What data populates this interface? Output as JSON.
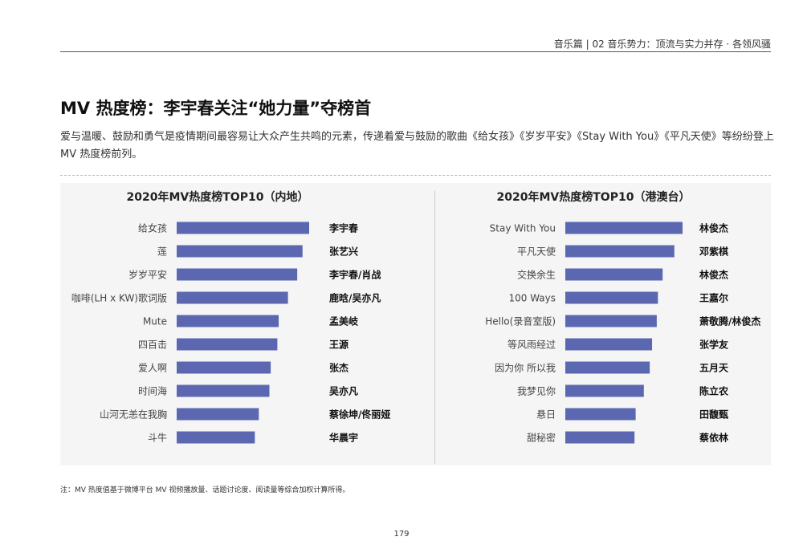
{
  "header": {
    "section": "音乐篇 | 02 音乐势力：顶流与实力并存 · 各领风骚"
  },
  "title": "MV 热度榜：李宇春关注“她力量”夺榜首",
  "description": "爱与温暖、鼓励和勇气是疫情期间最容易让大众产生共鸣的元素，传递着爱与鼓励的歌曲《给女孩》《岁岁平安》《Stay With You》《平凡天使》等纷纷登上 MV 热度榜前列。",
  "note": "注：MV 热度值基于微博平台 MV 视频播放量、话题讨论度、阅读量等综合加权计算所得。",
  "page_number": "179",
  "colors": {
    "bar": "#5b68b1",
    "panel": "#f5f5f5"
  },
  "chart_data": [
    {
      "type": "bar",
      "orientation": "horizontal",
      "title": "2020年MV热度榜TOP10（内地）",
      "categories": [
        "给女孩",
        "莲",
        "岁岁平安",
        "咖啡(LH x KW)歌词版",
        "Mute",
        "四百击",
        "爱人啊",
        "时间海",
        "山河无恙在我胸",
        "斗牛"
      ],
      "artists": [
        "李宇春",
        "张艺兴",
        "李宇春/肖战",
        "鹿晗/吴亦凡",
        "孟美岐",
        "王源",
        "张杰",
        "吴亦凡",
        "蔡徐坤/佟丽娅",
        "华晨宇"
      ],
      "values": [
        100,
        95,
        91,
        84,
        77,
        76,
        71,
        70,
        62,
        59
      ],
      "value_axis_shown": false
    },
    {
      "type": "bar",
      "orientation": "horizontal",
      "title": "2020年MV热度榜TOP10（港澳台）",
      "categories": [
        "Stay With You",
        "平凡天使",
        "交换余生",
        "100 Ways",
        "Hello(录音室版)",
        "等风雨经过",
        "因为你 所以我",
        "我梦见你",
        "悬日",
        "甜秘密"
      ],
      "artists": [
        "林俊杰",
        "邓紫棋",
        "林俊杰",
        "王嘉尔",
        "萧敬腾/林俊杰",
        "张学友",
        "五月天",
        "陈立农",
        "田馥甄",
        "蔡依林"
      ],
      "values": [
        100,
        93,
        83,
        79,
        78,
        74,
        72,
        67,
        60,
        59
      ],
      "value_axis_shown": false
    }
  ]
}
